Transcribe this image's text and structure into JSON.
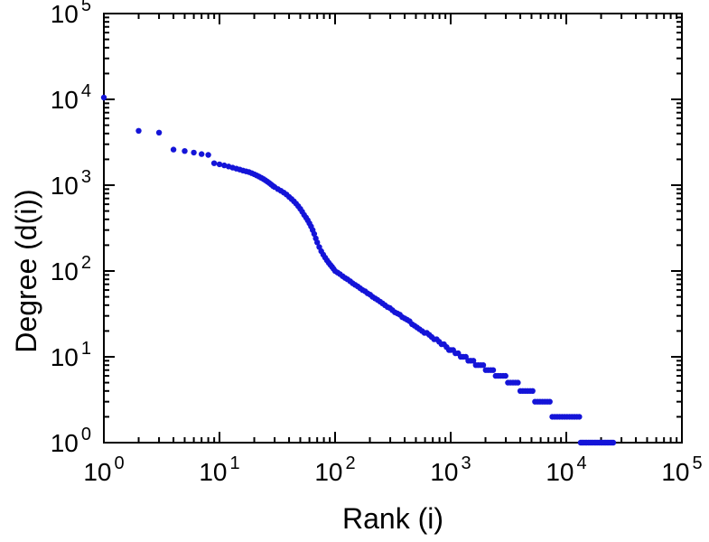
{
  "chart_data": {
    "type": "scatter",
    "title": "",
    "xlabel": "Rank (i)",
    "ylabel": "Degree (d(i))",
    "x_scale": "log",
    "y_scale": "log",
    "xlim": [
      1,
      100000
    ],
    "ylim": [
      1,
      100000
    ],
    "tick_base": "10",
    "x_tick_exponents": [
      0,
      1,
      2,
      3,
      4,
      5
    ],
    "y_tick_exponents": [
      0,
      1,
      2,
      3,
      4,
      5
    ],
    "grid": "off",
    "legend": "none",
    "marker_color": "#1414d8",
    "axis_color": "#000000",
    "background_color": "#ffffff",
    "marker_radius": 3.2,
    "points": [
      [
        1,
        10500
      ],
      [
        2,
        4300
      ],
      [
        3,
        4100
      ],
      [
        4,
        2600
      ],
      [
        5,
        2500
      ],
      [
        6,
        2400
      ],
      [
        7,
        2300
      ],
      [
        8,
        2250
      ],
      [
        9,
        1800
      ],
      [
        10,
        1750
      ],
      [
        11,
        1700
      ],
      [
        12,
        1650
      ],
      [
        13,
        1600
      ],
      [
        14,
        1560
      ],
      [
        15,
        1520
      ],
      [
        16,
        1480
      ],
      [
        17,
        1450
      ],
      [
        18,
        1420
      ],
      [
        19,
        1380
      ],
      [
        20,
        1340
      ],
      [
        21,
        1300
      ],
      [
        22,
        1260
      ],
      [
        23,
        1220
      ],
      [
        24,
        1180
      ],
      [
        25,
        1140
      ],
      [
        26,
        1100
      ],
      [
        27,
        1060
      ],
      [
        28,
        1020
      ],
      [
        29,
        980
      ],
      [
        30,
        950
      ],
      [
        32,
        900
      ],
      [
        34,
        860
      ],
      [
        36,
        820
      ],
      [
        38,
        780
      ],
      [
        40,
        730
      ],
      [
        42,
        690
      ],
      [
        44,
        650
      ],
      [
        46,
        610
      ],
      [
        48,
        570
      ],
      [
        50,
        530
      ],
      [
        52,
        490
      ],
      [
        54,
        450
      ],
      [
        56,
        420
      ],
      [
        58,
        390
      ],
      [
        60,
        360
      ],
      [
        62,
        330
      ],
      [
        64,
        300
      ],
      [
        66,
        270
      ],
      [
        68,
        240
      ],
      [
        70,
        215
      ],
      [
        73,
        190
      ],
      [
        76,
        170
      ],
      [
        79,
        155
      ],
      [
        82,
        143
      ],
      [
        85,
        133
      ],
      [
        88,
        125
      ],
      [
        91,
        118
      ],
      [
        94,
        112
      ],
      [
        97,
        106
      ],
      [
        100,
        100
      ],
      [
        105,
        96
      ],
      [
        110,
        92
      ],
      [
        116,
        87
      ],
      [
        122,
        83
      ],
      [
        128,
        80
      ],
      [
        135,
        76
      ],
      [
        142,
        72
      ],
      [
        149,
        69
      ],
      [
        157,
        66
      ],
      [
        165,
        63
      ],
      [
        173,
        60
      ],
      [
        182,
        58
      ],
      [
        191,
        55
      ],
      [
        201,
        53
      ],
      [
        211,
        50
      ],
      [
        222,
        48
      ],
      [
        233,
        46
      ],
      [
        245,
        44
      ],
      [
        257,
        42
      ],
      [
        270,
        40
      ],
      [
        284,
        38
      ],
      [
        298,
        37
      ],
      [
        313,
        35
      ],
      [
        329,
        33
      ],
      [
        346,
        32
      ],
      [
        363,
        31
      ],
      [
        381,
        29
      ],
      [
        400,
        28
      ],
      [
        420,
        27
      ],
      [
        441,
        26
      ],
      [
        463,
        24
      ],
      [
        487,
        23
      ],
      [
        511,
        22
      ],
      [
        537,
        21
      ],
      [
        564,
        20
      ],
      [
        592,
        19
      ],
      [
        622,
        19
      ],
      [
        653,
        18
      ],
      [
        686,
        17
      ],
      [
        720,
        16
      ],
      [
        756,
        16
      ],
      [
        794,
        15
      ],
      [
        834,
        14
      ],
      [
        876,
        14
      ],
      [
        920,
        13
      ],
      [
        966,
        12
      ],
      [
        1000,
        12
      ],
      [
        1050,
        12
      ],
      [
        1100,
        11
      ],
      [
        1160,
        11
      ],
      [
        1220,
        10
      ],
      [
        1280,
        10
      ],
      [
        1350,
        10
      ],
      [
        1420,
        9
      ],
      [
        1490,
        9
      ],
      [
        1570,
        9
      ],
      [
        1650,
        8
      ],
      [
        1730,
        8
      ],
      [
        1820,
        8
      ],
      [
        1910,
        8
      ],
      [
        2010,
        7
      ],
      [
        2110,
        7
      ],
      [
        2220,
        7
      ],
      [
        2330,
        7
      ],
      [
        2450,
        6
      ],
      [
        2570,
        6
      ],
      [
        2700,
        6
      ],
      [
        2840,
        6
      ],
      [
        2980,
        6
      ],
      [
        3130,
        5
      ],
      [
        3290,
        5
      ],
      [
        3460,
        5
      ],
      [
        3630,
        5
      ],
      [
        3810,
        5
      ],
      [
        4000,
        4
      ],
      [
        4200,
        4
      ],
      [
        4410,
        4
      ],
      [
        4630,
        4
      ],
      [
        4870,
        4
      ],
      [
        5110,
        4
      ],
      [
        5370,
        3
      ],
      [
        5640,
        3
      ],
      [
        5920,
        3
      ],
      [
        6220,
        3
      ],
      [
        6530,
        3
      ],
      [
        6860,
        3
      ],
      [
        7200,
        3
      ],
      [
        7560,
        2
      ],
      [
        7940,
        2
      ],
      [
        8340,
        2
      ],
      [
        8760,
        2
      ],
      [
        9200,
        2
      ],
      [
        9660,
        2
      ],
      [
        10150,
        2
      ],
      [
        10660,
        2
      ],
      [
        11190,
        2
      ],
      [
        11750,
        2
      ],
      [
        12340,
        2
      ],
      [
        12960,
        2
      ],
      [
        13300,
        1
      ],
      [
        13700,
        1
      ],
      [
        14100,
        1
      ],
      [
        14600,
        1
      ],
      [
        15000,
        1
      ],
      [
        15500,
        1
      ],
      [
        16000,
        1
      ],
      [
        16500,
        1
      ],
      [
        17000,
        1
      ],
      [
        17600,
        1
      ],
      [
        18100,
        1
      ],
      [
        18700,
        1
      ],
      [
        19300,
        1
      ],
      [
        19900,
        1
      ],
      [
        20500,
        1
      ],
      [
        21200,
        1
      ],
      [
        21800,
        1
      ],
      [
        22500,
        1
      ],
      [
        23200,
        1
      ],
      [
        24000,
        1
      ],
      [
        24700,
        1
      ],
      [
        25500,
        1
      ]
    ]
  }
}
